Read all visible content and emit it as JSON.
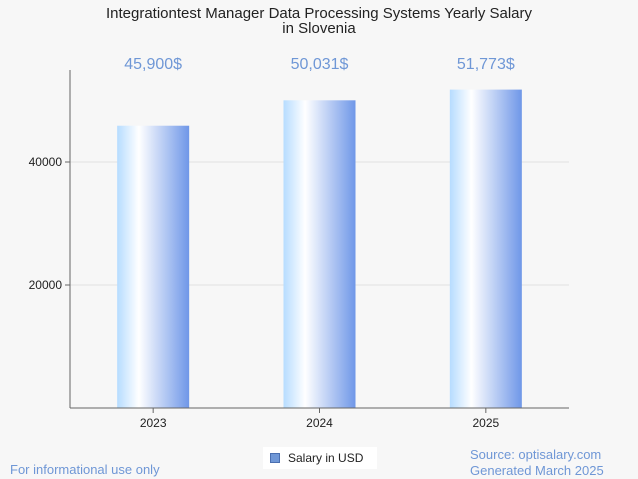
{
  "chart_data": {
    "type": "bar",
    "title_lines": [
      "Integrationtest Manager Data Processing Systems Yearly Salary",
      "in Slovenia"
    ],
    "categories": [
      "2023",
      "2024",
      "2025"
    ],
    "series": [
      {
        "name": "Salary in USD",
        "values": [
          45900,
          50031,
          51773
        ]
      }
    ],
    "value_labels": [
      "45,900$",
      "50,031$",
      "51,773$"
    ],
    "y_ticks": [
      20000,
      40000
    ],
    "ylim": [
      0,
      55000
    ],
    "grid": true,
    "legend_position": "bottom-center",
    "colors": {
      "bar_light": "#dff0ff",
      "bar_dark": "#6f97d6",
      "label": "#6f97d6"
    }
  },
  "footer": {
    "left": "For informational use only",
    "source": "Source: optisalary.com",
    "generated": "Generated March 2025"
  }
}
